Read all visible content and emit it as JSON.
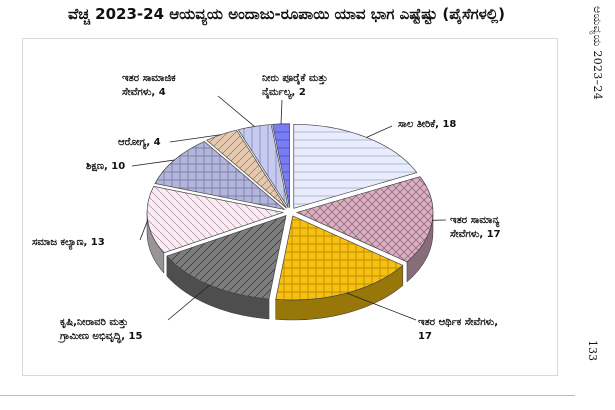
{
  "side_header": "ಆಯವ್ಯಯ 2023–24",
  "page_number": "133",
  "chart_data": {
    "type": "pie",
    "title": "ವೆಚ್ಚ 2023-24 ಆಯವ್ಯಯ ಅಂದಾಜು-ರೂಪಾಯಿ ಯಾವ ಭಾಗ ಎಷ್ಟೆಷ್ಟು (ಪೈಸೆಗಳಲ್ಲಿ)",
    "slices": [
      {
        "label": "ಸಾಲ ತೀರಿಕೆ, 18",
        "value": 18,
        "color": "#e9ebff"
      },
      {
        "label": "ಇತರ ಸಾಮಾನ್ಯ ಸೇವೆಗಳು, 17",
        "value": 17,
        "color": "#d9b0c2"
      },
      {
        "label": "ಇತರ ಆರ್ಥಿಕ ಸೇವೆಗಳು, 17",
        "value": 17,
        "color": "#f5c010"
      },
      {
        "label": "ಕೃಷಿ,ನೀರಾವರಿ ಮತ್ತು ಗ್ರಾಮೀಣ ಅಭಿವೃದ್ಧಿ, 15",
        "value": 15,
        "color": "#7d7d7d"
      },
      {
        "label": "ಸಮಾಜ ಕಲ್ಯಾಣ, 13",
        "value": 13,
        "color": "#f6eef3"
      },
      {
        "label": "ಶಿಕ್ಷಣ, 10",
        "value": 10,
        "color": "#b3b6d9"
      },
      {
        "label": "ಆರೋಗ್ಯ, 4",
        "value": 4,
        "color": "#e4c9b0"
      },
      {
        "label": "ಇತರ ಸಾಮಾಜಿಕ ಸೇವೆಗಳು, 4",
        "value": 4,
        "color": "#c6cbee"
      },
      {
        "label": "ನೀರು ಪೂರೈಕೆ ಮತ್ತು ನೈರ್ಮಲ್ಯ, 2",
        "value": 2,
        "color": "#7a7cf2"
      }
    ],
    "labels_display": [
      [
        "ಸಾಲ ತೀರಿಕೆ, 18"
      ],
      [
        "ಇತರ ಸಾಮಾನ್ಯ",
        "ಸೇವೆಗಳು, 17"
      ],
      [
        "ಇತರ ಆರ್ಥಿಕ ಸೇವೆಗಳು,",
        "17"
      ],
      [
        "ಕೃಷಿ,ನೀರಾವರಿ ಮತ್ತು",
        "ಗ್ರಾಮೀಣ ಅಭಿವೃದ್ಧಿ, 15"
      ],
      [
        "ಸಮಾಜ ಕಲ್ಯಾಣ, 13"
      ],
      [
        "ಶಿಕ್ಷಣ, 10"
      ],
      [
        "ಆರೋಗ್ಯ, 4"
      ],
      [
        "ಇತರ ಸಾಮಾಜಿಕ",
        "ಸೇವೆಗಳು, 4"
      ],
      [
        "ನೀರು ಪೂರೈಕೆ ಮತ್ತು",
        "ನೈರ್ಮಲ್ಯ, 2"
      ]
    ],
    "style": "3d-exploded",
    "start_angle_deg": 270,
    "direction": "clockwise"
  }
}
